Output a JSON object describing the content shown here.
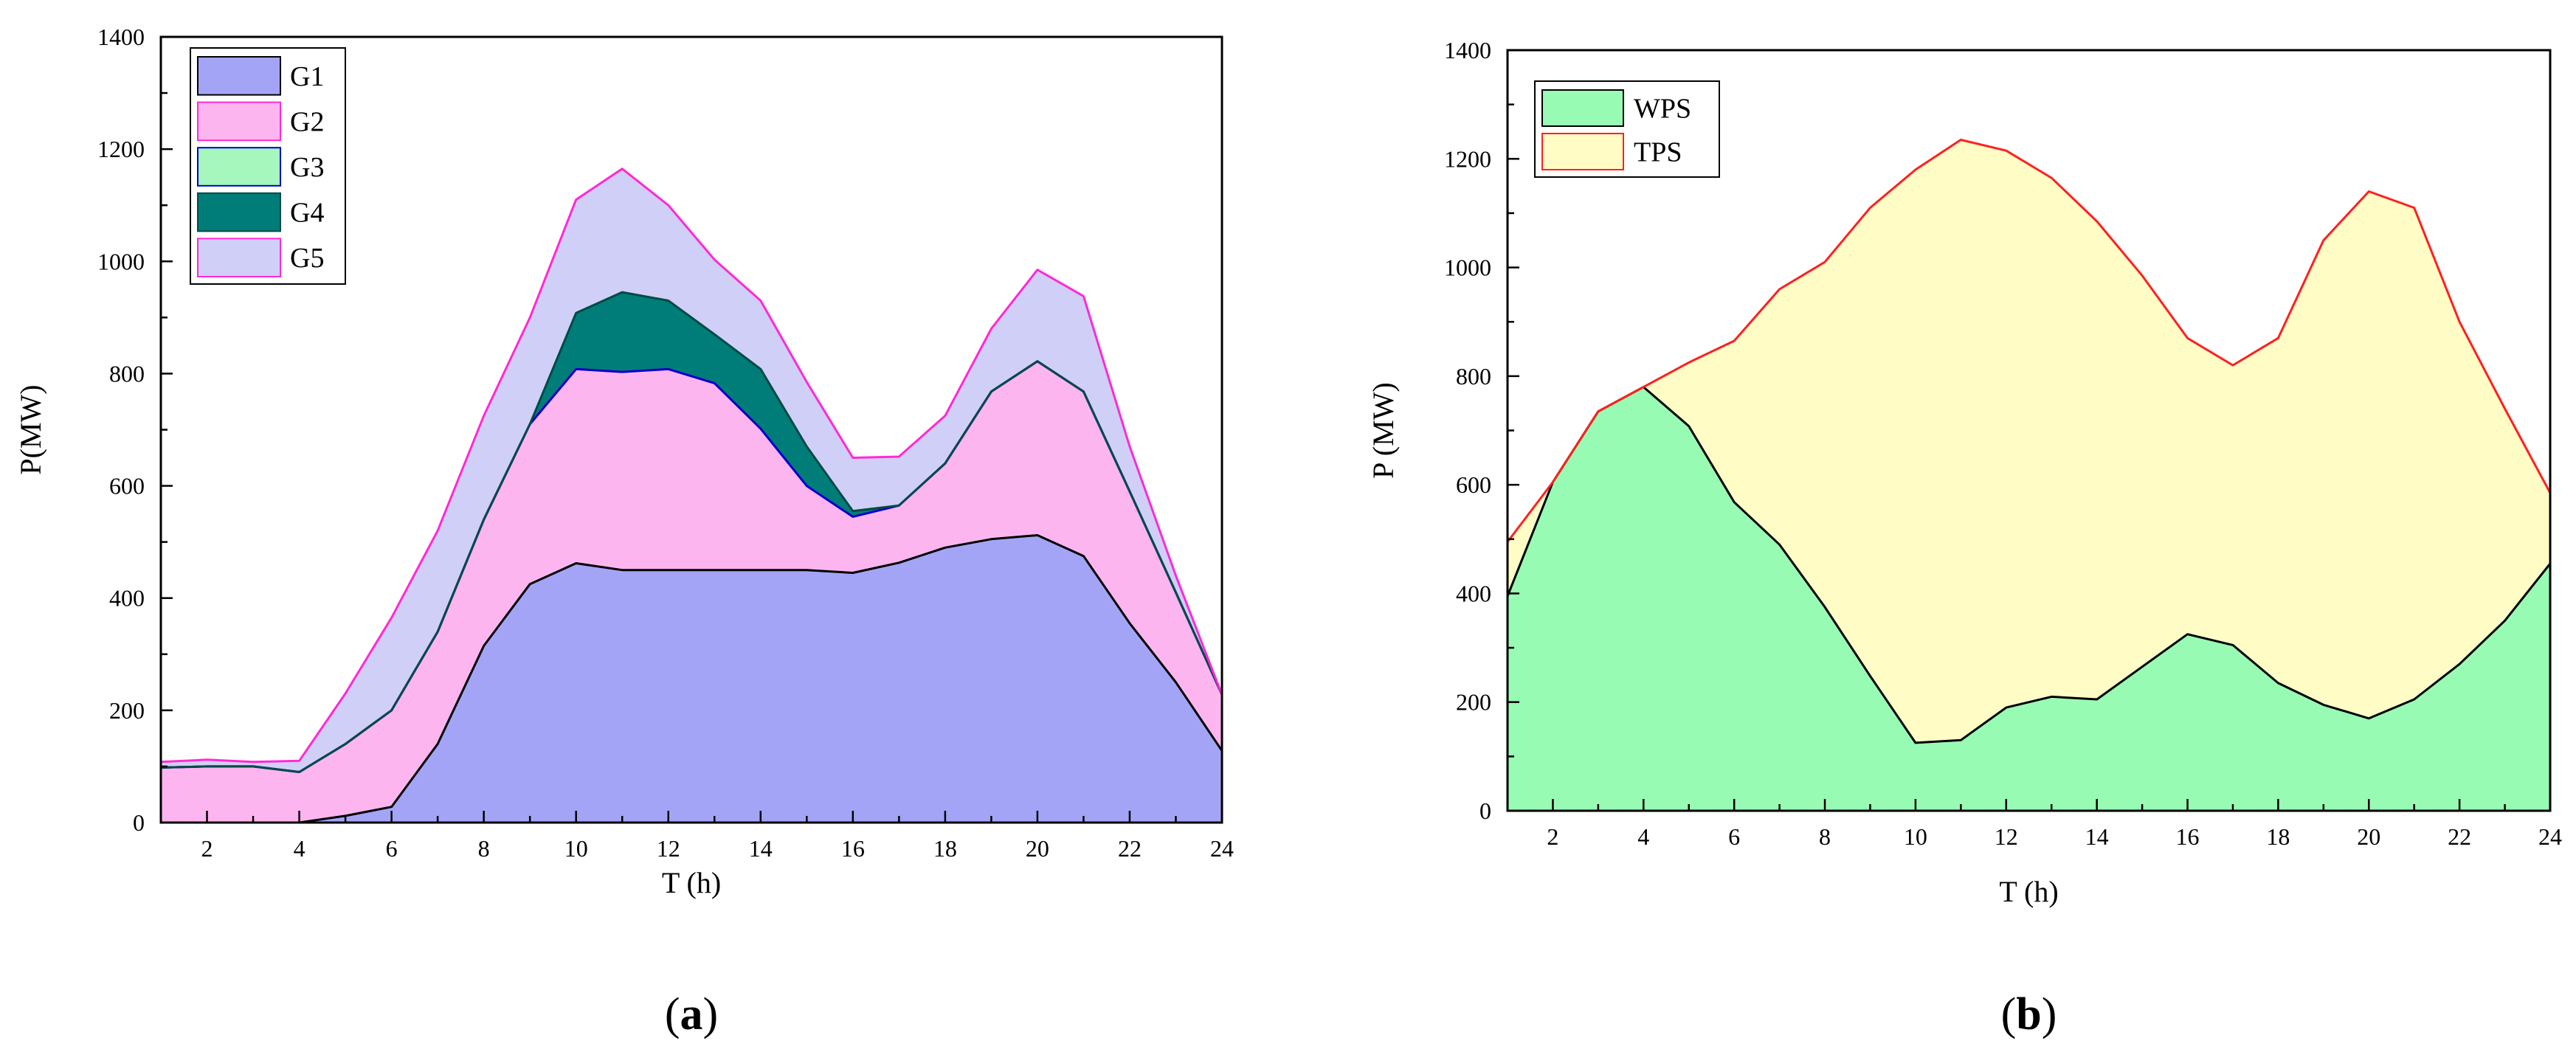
{
  "chart_data": [
    {
      "id": "a",
      "type": "area",
      "stacked": true,
      "panel_label": "a",
      "xlabel": "T (h)",
      "ylabel": "P(MW)",
      "xlim": [
        1,
        24
      ],
      "ylim": [
        0,
        1400
      ],
      "x_ticks": [
        2,
        4,
        6,
        8,
        10,
        12,
        14,
        16,
        18,
        20,
        22,
        24
      ],
      "y_ticks": [
        0,
        200,
        400,
        600,
        800,
        1000,
        1200,
        1400
      ],
      "legend_position": "top-left",
      "x": [
        1,
        2,
        3,
        4,
        5,
        6,
        7,
        8,
        9,
        10,
        11,
        12,
        13,
        14,
        15,
        16,
        17,
        18,
        19,
        20,
        21,
        22,
        23,
        24
      ],
      "series": [
        {
          "name": "G1",
          "color": "#a4a4f7",
          "edge": "#000000",
          "cumulative": [
            0,
            0,
            0,
            0,
            12,
            28,
            140,
            315,
            425,
            462,
            450,
            450,
            450,
            450,
            450,
            445,
            463,
            490,
            505,
            512,
            475,
            355,
            250,
            128
          ]
        },
        {
          "name": "G2",
          "color": "#fdb5f0",
          "edge": "#ff2ad4",
          "cumulative": [
            98,
            100,
            100,
            90,
            140,
            200,
            340,
            540,
            710,
            808,
            803,
            808,
            783,
            702,
            600,
            545,
            565,
            640,
            768,
            822,
            768,
            590,
            410,
            228
          ]
        },
        {
          "name": "G3",
          "color": "#a5f7be",
          "edge": "#0000cc",
          "cumulative": [
            98,
            100,
            100,
            90,
            140,
            200,
            340,
            540,
            710,
            808,
            803,
            808,
            783,
            702,
            600,
            545,
            565,
            640,
            768,
            822,
            768,
            590,
            410,
            228
          ]
        },
        {
          "name": "G4",
          "color": "#007d78",
          "edge": "#004a47",
          "cumulative": [
            98,
            100,
            100,
            90,
            140,
            200,
            340,
            540,
            710,
            908,
            945,
            930,
            870,
            808,
            670,
            555,
            565,
            640,
            768,
            822,
            768,
            590,
            410,
            228
          ]
        },
        {
          "name": "G5",
          "color": "#d0cff7",
          "edge": "#ff2ad4",
          "cumulative": [
            108,
            112,
            108,
            110,
            230,
            365,
            520,
            725,
            900,
            1110,
            1165,
            1100,
            1003,
            930,
            785,
            650,
            652,
            725,
            880,
            985,
            938,
            670,
            440,
            228
          ]
        }
      ]
    },
    {
      "id": "b",
      "type": "area",
      "stacked": true,
      "panel_label": "b",
      "xlabel": "T (h)",
      "ylabel": "P (MW)",
      "xlim": [
        1,
        24
      ],
      "ylim": [
        0,
        1400
      ],
      "x_ticks": [
        2,
        4,
        6,
        8,
        10,
        12,
        14,
        16,
        18,
        20,
        22,
        24
      ],
      "y_ticks": [
        0,
        200,
        400,
        600,
        800,
        1000,
        1200,
        1400
      ],
      "legend_position": "top-left",
      "x": [
        1,
        2,
        3,
        4,
        5,
        6,
        7,
        8,
        9,
        10,
        11,
        12,
        13,
        14,
        15,
        16,
        17,
        18,
        19,
        20,
        21,
        22,
        23,
        24
      ],
      "series": [
        {
          "name": "WPS",
          "color": "#98fbb3",
          "edge": "#000000",
          "cumulative": [
            395,
            605,
            735,
            780,
            708,
            568,
            490,
            375,
            248,
            125,
            130,
            190,
            210,
            205,
            265,
            325,
            305,
            235,
            195,
            170,
            205,
            270,
            350,
            455
          ]
        },
        {
          "name": "TPS",
          "color": "#fffdc5",
          "edge": "#ff2020",
          "cumulative": [
            495,
            605,
            735,
            780,
            825,
            865,
            960,
            1010,
            1110,
            1180,
            1235,
            1215,
            1165,
            1085,
            985,
            870,
            820,
            870,
            1050,
            1140,
            1110,
            900,
            740,
            585
          ]
        }
      ]
    }
  ]
}
